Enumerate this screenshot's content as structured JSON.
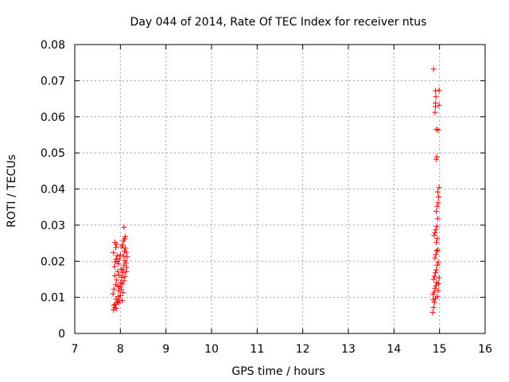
{
  "chart_data": {
    "type": "scatter",
    "title": "Day 044 of 2014, Rate Of TEC Index for receiver ntus",
    "xlabel": "GPS time / hours",
    "ylabel": "ROTI / TECUs",
    "xlim": [
      7,
      16
    ],
    "ylim": [
      0,
      0.08
    ],
    "xticks": [
      7,
      8,
      9,
      10,
      11,
      12,
      13,
      14,
      15,
      16
    ],
    "yticks": [
      0,
      0.01,
      0.02,
      0.03,
      0.04,
      0.05,
      0.06,
      0.07,
      0.08
    ],
    "ytick_labels": [
      "0",
      "0.01",
      "0.02",
      "0.03",
      "0.04",
      "0.05",
      "0.06",
      "0.07",
      "0.08"
    ],
    "grid": true,
    "marker": "+",
    "color": "#ff0000",
    "series": [
      {
        "name": "ROTI",
        "points": [
          [
            7.85,
            0.0065
          ],
          [
            7.87,
            0.0072
          ],
          [
            7.89,
            0.0081
          ],
          [
            7.91,
            0.0095
          ],
          [
            7.93,
            0.0088
          ],
          [
            7.95,
            0.0102
          ],
          [
            7.84,
            0.011
          ],
          [
            7.86,
            0.0123
          ],
          [
            7.9,
            0.0135
          ],
          [
            7.92,
            0.0148
          ],
          [
            7.88,
            0.016
          ],
          [
            7.94,
            0.0172
          ],
          [
            7.96,
            0.0085
          ],
          [
            7.98,
            0.0092
          ],
          [
            8.0,
            0.0105
          ],
          [
            7.87,
            0.0185
          ],
          [
            7.89,
            0.0198
          ],
          [
            7.91,
            0.0206
          ],
          [
            7.93,
            0.0215
          ],
          [
            7.85,
            0.0224
          ],
          [
            7.9,
            0.0238
          ],
          [
            7.92,
            0.0247
          ],
          [
            7.88,
            0.0252
          ],
          [
            7.97,
            0.0118
          ],
          [
            7.99,
            0.0129
          ],
          [
            8.01,
            0.0141
          ],
          [
            8.03,
            0.0155
          ],
          [
            8.05,
            0.0168
          ],
          [
            8.02,
            0.0122
          ],
          [
            8.04,
            0.0137
          ],
          [
            8.06,
            0.0176
          ],
          [
            8.08,
            0.0189
          ],
          [
            8.1,
            0.0202
          ],
          [
            8.07,
            0.0214
          ],
          [
            8.09,
            0.0228
          ],
          [
            8.11,
            0.0236
          ],
          [
            8.05,
            0.0245
          ],
          [
            8.07,
            0.0256
          ],
          [
            8.09,
            0.0262
          ],
          [
            8.12,
            0.0195
          ],
          [
            8.14,
            0.0183
          ],
          [
            8.13,
            0.0171
          ],
          [
            8.15,
            0.0212
          ],
          [
            8.1,
            0.0158
          ],
          [
            8.08,
            0.0146
          ],
          [
            7.96,
            0.0193
          ],
          [
            7.98,
            0.0207
          ],
          [
            8.0,
            0.0218
          ],
          [
            7.94,
            0.0199
          ],
          [
            7.97,
            0.0162
          ],
          [
            8.02,
            0.0178
          ],
          [
            8.04,
            0.0091
          ],
          [
            8.06,
            0.0113
          ],
          [
            7.86,
            0.0078
          ],
          [
            7.91,
            0.0069
          ],
          [
            8.11,
            0.0268
          ],
          [
            8.08,
            0.0294
          ],
          [
            8.13,
            0.0224
          ],
          [
            8.03,
            0.024
          ],
          [
            7.95,
            0.0131
          ],
          [
            14.85,
            0.0058
          ],
          [
            14.87,
            0.0072
          ],
          [
            14.89,
            0.0086
          ],
          [
            14.91,
            0.0097
          ],
          [
            14.86,
            0.0108
          ],
          [
            14.88,
            0.0114
          ],
          [
            14.9,
            0.0125
          ],
          [
            14.92,
            0.0132
          ],
          [
            14.94,
            0.0141
          ],
          [
            14.87,
            0.015
          ],
          [
            14.89,
            0.0158
          ],
          [
            14.91,
            0.0168
          ],
          [
            14.93,
            0.0176
          ],
          [
            14.95,
            0.0189
          ],
          [
            14.97,
            0.0197
          ],
          [
            14.9,
            0.0209
          ],
          [
            14.92,
            0.0219
          ],
          [
            14.94,
            0.0229
          ],
          [
            14.96,
            0.0231
          ],
          [
            14.93,
            0.0252
          ],
          [
            14.95,
            0.0263
          ],
          [
            14.88,
            0.0272
          ],
          [
            14.9,
            0.0279
          ],
          [
            14.92,
            0.0287
          ],
          [
            14.94,
            0.0297
          ],
          [
            14.96,
            0.0318
          ],
          [
            14.93,
            0.0338
          ],
          [
            14.95,
            0.0352
          ],
          [
            14.97,
            0.0362
          ],
          [
            14.98,
            0.0378
          ],
          [
            14.96,
            0.0392
          ],
          [
            14.99,
            0.0404
          ],
          [
            14.93,
            0.0482
          ],
          [
            14.94,
            0.0489
          ],
          [
            14.93,
            0.0565
          ],
          [
            14.97,
            0.0563
          ],
          [
            14.9,
            0.0612
          ],
          [
            14.91,
            0.0628
          ],
          [
            14.99,
            0.0632
          ],
          [
            14.91,
            0.0638
          ],
          [
            14.92,
            0.0656
          ],
          [
            14.91,
            0.0672
          ],
          [
            14.99,
            0.0673
          ],
          [
            14.87,
            0.0732
          ],
          [
            14.95,
            0.0102
          ],
          [
            14.97,
            0.0119
          ],
          [
            14.98,
            0.0138
          ],
          [
            14.86,
            0.0093
          ],
          [
            14.99,
            0.0154
          ]
        ]
      }
    ]
  }
}
